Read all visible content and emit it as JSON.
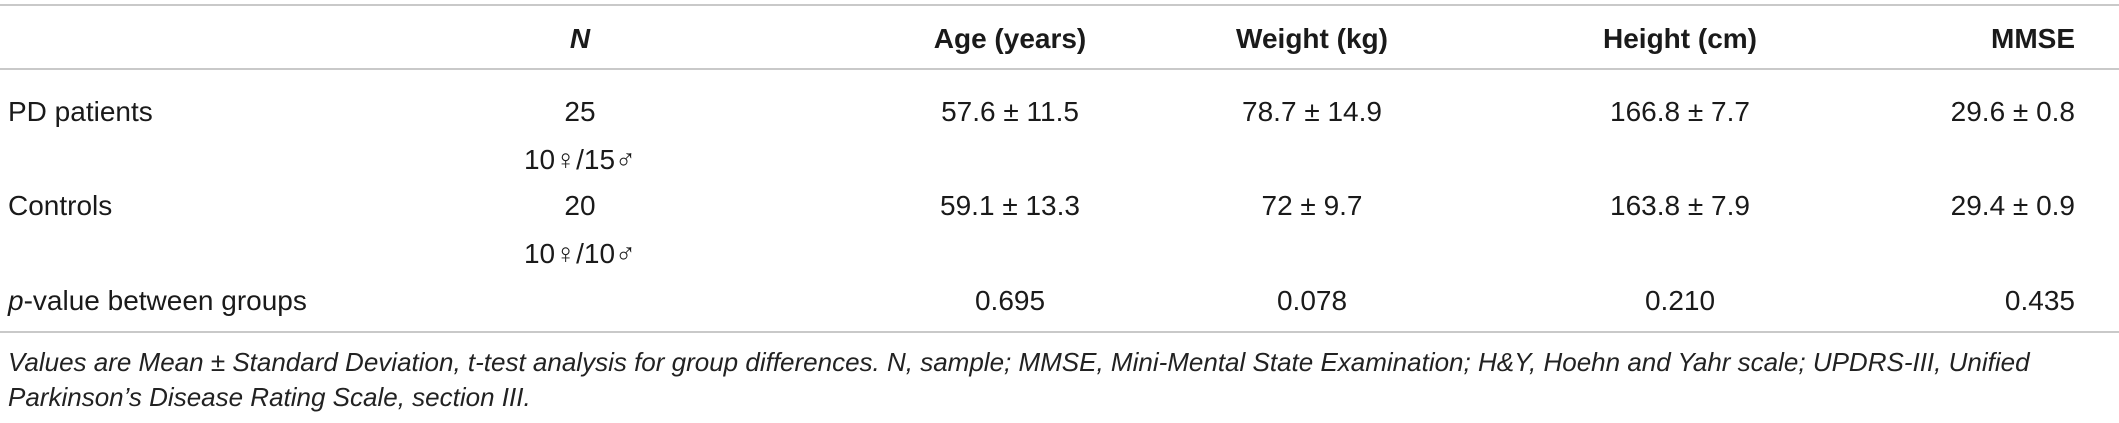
{
  "table": {
    "headers": {
      "group": "",
      "n": "N",
      "age": "Age (years)",
      "weight": "Weight (kg)",
      "height": "Height (cm)",
      "mmse": "MMSE"
    },
    "rows": [
      {
        "group": "PD patients",
        "n": "25",
        "n_sex": "10♀/15♂",
        "age": "57.6 ± 11.5",
        "weight": "78.7 ± 14.9",
        "height": "166.8 ± 7.7",
        "mmse": "29.6 ± 0.8"
      },
      {
        "group": "Controls",
        "n": "20",
        "n_sex": "10♀/10♂",
        "age": "59.1 ± 13.3",
        "weight": "72 ± 9.7",
        "height": "163.8 ± 7.9",
        "mmse": "29.4 ± 0.9"
      },
      {
        "group_italic": "p",
        "group_rest": "-value between groups",
        "n": "",
        "age": "0.695",
        "weight": "0.078",
        "height": "0.210",
        "mmse": "0.435"
      }
    ],
    "footnote": "Values are Mean ± Standard Deviation, t-test analysis for group differences. N, sample; MMSE, Mini-Mental State Examination; H&Y, Hoehn and Yahr scale; UPDRS-III, Unified Parkinson’s Disease Rating Scale, section III."
  }
}
